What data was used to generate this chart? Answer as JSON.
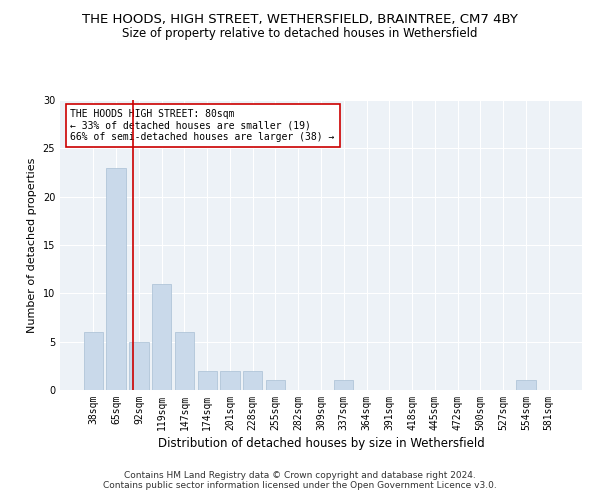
{
  "title1": "THE HOODS, HIGH STREET, WETHERSFIELD, BRAINTREE, CM7 4BY",
  "title2": "Size of property relative to detached houses in Wethersfield",
  "xlabel": "Distribution of detached houses by size in Wethersfield",
  "ylabel": "Number of detached properties",
  "categories": [
    "38sqm",
    "65sqm",
    "92sqm",
    "119sqm",
    "147sqm",
    "174sqm",
    "201sqm",
    "228sqm",
    "255sqm",
    "282sqm",
    "309sqm",
    "337sqm",
    "364sqm",
    "391sqm",
    "418sqm",
    "445sqm",
    "472sqm",
    "500sqm",
    "527sqm",
    "554sqm",
    "581sqm"
  ],
  "values": [
    6,
    23,
    5,
    11,
    6,
    2,
    2,
    2,
    1,
    0,
    0,
    1,
    0,
    0,
    0,
    0,
    0,
    0,
    0,
    1,
    0
  ],
  "bar_color": "#c9d9ea",
  "bar_edge_color": "#a8bfd4",
  "bar_linewidth": 0.5,
  "red_line_x": 1.72,
  "red_line_color": "#cc0000",
  "annotation_text": "THE HOODS HIGH STREET: 80sqm\n← 33% of detached houses are smaller (19)\n66% of semi-detached houses are larger (38) →",
  "annotation_box_color": "white",
  "annotation_box_edge_color": "#cc0000",
  "ylim": [
    0,
    30
  ],
  "yticks": [
    0,
    5,
    10,
    15,
    20,
    25,
    30
  ],
  "bg_color": "#edf2f7",
  "footnote": "Contains HM Land Registry data © Crown copyright and database right 2024.\nContains public sector information licensed under the Open Government Licence v3.0.",
  "title1_fontsize": 9.5,
  "title2_fontsize": 8.5,
  "xlabel_fontsize": 8.5,
  "ylabel_fontsize": 8,
  "tick_fontsize": 7,
  "footnote_fontsize": 6.5,
  "annot_fontsize": 7
}
